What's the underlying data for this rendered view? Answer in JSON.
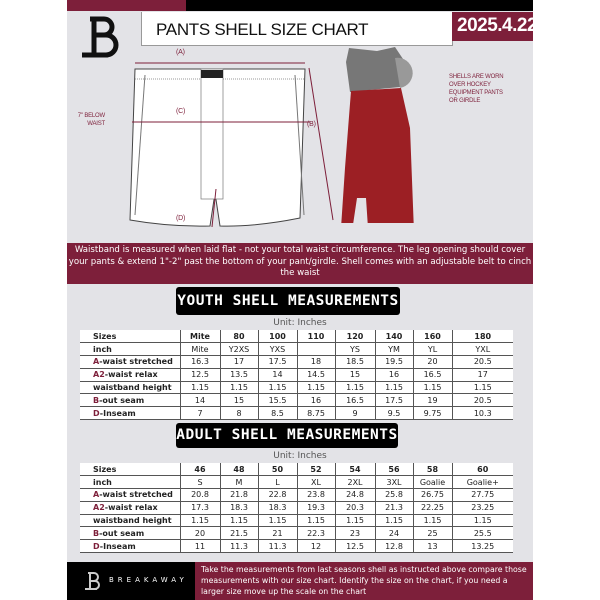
{
  "header": {
    "title": "PANTS SHELL SIZE CHART",
    "date": "2025.4.22"
  },
  "diagram": {
    "label_a": "(A)",
    "label_b": "(B)",
    "label_c": "(C)",
    "label_d": "(D)",
    "below_waist_note": "7\" BELOW WAIST",
    "worn_note": "SHELLS ARE WORN OVER HOCKEY EQUIPMENT PANTS OR GIRDLE"
  },
  "info_text": "Waistband is measured when laid flat - not your total waist circumference. The leg opening should cover your pants & extend 1\"-2\" past the bottom of your pant/girdle. Shell comes with an adjustable belt to cinch the waist",
  "youth": {
    "title": "YOUTH SHELL MEASUREMENTS",
    "unit": "Unit: Inches",
    "rows": [
      {
        "prefix": "",
        "label": "Sizes",
        "values": [
          "Mite",
          "80",
          "100",
          "110",
          "120",
          "140",
          "160",
          "180"
        ]
      },
      {
        "prefix": "",
        "label": "inch",
        "values": [
          "Mite",
          "Y2XS",
          "YXS",
          "",
          "YS",
          "YM",
          "YL",
          "YXL"
        ]
      },
      {
        "prefix": "A",
        "label": "-waist stretched",
        "values": [
          "16.3",
          "17",
          "17.5",
          "18",
          "18.5",
          "19.5",
          "20",
          "20.5"
        ]
      },
      {
        "prefix": "A2",
        "label": "-waist relax",
        "values": [
          "12.5",
          "13.5",
          "14",
          "14.5",
          "15",
          "16",
          "16.5",
          "17"
        ]
      },
      {
        "prefix": "",
        "label": "waistband height",
        "values": [
          "1.15",
          "1.15",
          "1.15",
          "1.15",
          "1.15",
          "1.15",
          "1.15",
          "1.15"
        ]
      },
      {
        "prefix": "B",
        "label": "-out seam",
        "values": [
          "14",
          "15",
          "15.5",
          "16",
          "16.5",
          "17.5",
          "19",
          "20.5"
        ]
      },
      {
        "prefix": "D",
        "label": "-Inseam",
        "values": [
          "7",
          "8",
          "8.5",
          "8.75",
          "9",
          "9.5",
          "9.75",
          "10.3"
        ]
      }
    ]
  },
  "adult": {
    "title": "ADULT SHELL MEASUREMENTS",
    "unit": "Unit: Inches",
    "rows": [
      {
        "prefix": "",
        "label": "Sizes",
        "values": [
          "46",
          "48",
          "50",
          "52",
          "54",
          "56",
          "58",
          "60"
        ]
      },
      {
        "prefix": "",
        "label": "inch",
        "values": [
          "S",
          "M",
          "L",
          "XL",
          "2XL",
          "3XL",
          "Goalie",
          "Goalie+"
        ]
      },
      {
        "prefix": "A",
        "label": "-waist stretched",
        "values": [
          "20.8",
          "21.8",
          "22.8",
          "23.8",
          "24.8",
          "25.8",
          "26.75",
          "27.75"
        ]
      },
      {
        "prefix": "A2",
        "label": "-waist relax",
        "values": [
          "17.3",
          "18.3",
          "18.3",
          "19.3",
          "20.3",
          "21.3",
          "22.25",
          "23.25"
        ]
      },
      {
        "prefix": "",
        "label": "waistband height",
        "values": [
          "1.15",
          "1.15",
          "1.15",
          "1.15",
          "1.15",
          "1.15",
          "1.15",
          "1.15"
        ]
      },
      {
        "prefix": "B",
        "label": "-out seam",
        "values": [
          "20",
          "21.5",
          "21",
          "22.3",
          "23",
          "24",
          "25",
          "25.5"
        ]
      },
      {
        "prefix": "D",
        "label": "-Inseam",
        "values": [
          "11",
          "11.3",
          "11.3",
          "12",
          "12.5",
          "12.8",
          "13",
          "13.25"
        ]
      }
    ]
  },
  "footer": {
    "brand": "BREAKAWAY",
    "text": "Take the measurements from last seasons shell as instructed above compare those measurements  with our size chart. Identify the size on the chart, if you need a larger size move up the scale on the chart"
  },
  "colors": {
    "accent": "#7d1f3a",
    "background": "#e3e3e7"
  }
}
